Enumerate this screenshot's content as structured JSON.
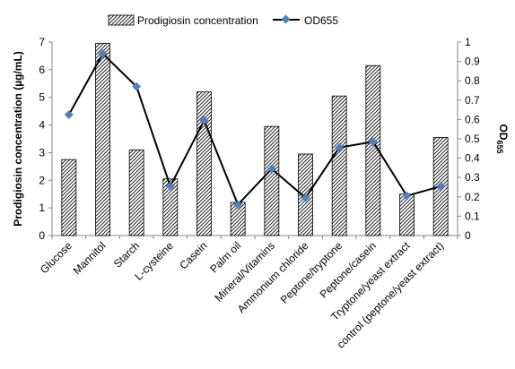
{
  "chart_data": {
    "type": "bar+line",
    "categories": [
      "Glucose",
      "Mannitol",
      "Starch",
      "L-cysteine",
      "Casein",
      "Palm oil",
      "Mineral/Vitamins",
      "Ammonium chloride",
      "Peptone/tryptone",
      "Peptone/casein",
      "Tryptone/yeast extract",
      "control (peptone/yeast extract)"
    ],
    "series": [
      {
        "name": "Prodigiosin concentration",
        "type": "bar",
        "axis": "left",
        "values": [
          2.75,
          6.95,
          3.1,
          2.05,
          5.2,
          1.2,
          3.95,
          2.95,
          5.05,
          6.15,
          1.5,
          3.55
        ]
      },
      {
        "name": "OD655",
        "type": "line",
        "axis": "right",
        "values": [
          0.625,
          0.94,
          0.77,
          0.255,
          0.595,
          0.16,
          0.345,
          0.195,
          0.455,
          0.485,
          0.205,
          0.255
        ]
      }
    ],
    "ylabel": "Prodigiosin concentration (µg/mL)",
    "ylim": [
      0,
      7
    ],
    "yticks": [
      0,
      1,
      2,
      3,
      4,
      5,
      6,
      7
    ],
    "y2label": "OD",
    "y2label_sub": "655",
    "y2lim": [
      0,
      1
    ],
    "y2ticks": [
      "0",
      "0.1",
      "0.2",
      "0.3",
      "0.4",
      "0.5",
      "0.6",
      "0.7",
      "0.8",
      "0.9",
      "1"
    ],
    "legend_position": "top",
    "grid": false,
    "colors": {
      "line": "#000000",
      "marker": "#4f81bd",
      "bar_stroke": "#000000"
    }
  }
}
